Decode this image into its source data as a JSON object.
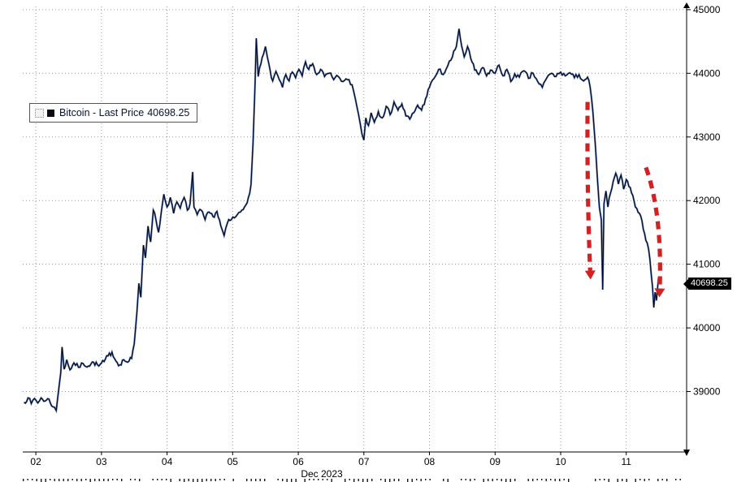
{
  "chart_data": {
    "type": "line",
    "title": "Bitcoin - Last Price",
    "legend": {
      "label": "Bitcoin - Last Price",
      "value": "40698.25"
    },
    "last_price": 40698.25,
    "x_axis": {
      "caption": "Dec 2023",
      "tick_days": [
        2,
        3,
        4,
        5,
        6,
        7,
        8,
        9,
        10,
        11
      ],
      "tick_labels": [
        "02",
        "03",
        "04",
        "05",
        "06",
        "07",
        "08",
        "09",
        "10",
        "11"
      ]
    },
    "y_axis": {
      "ticks": [
        39000,
        40000,
        41000,
        42000,
        43000,
        44000,
        45000
      ],
      "tick_labels": [
        "39000",
        "40000",
        "41000",
        "42000",
        "43000",
        "44000",
        "45000"
      ],
      "side": "right"
    },
    "xlim": [
      1.8,
      11.92
    ],
    "ylim": [
      38050,
      45050
    ],
    "grid": "dotted",
    "jitter": 38,
    "colors": {
      "line": "#05060d",
      "line_glow": "#1d4db0",
      "grid": "#9a9a9a",
      "axis": "#000000",
      "arrow": "#d42020",
      "label_bg": "#000000",
      "label_fg": "#ffffff"
    },
    "series": [
      {
        "name": "Bitcoin",
        "points": [
          [
            1.82,
            38830
          ],
          [
            1.88,
            38900
          ],
          [
            1.93,
            38810
          ],
          [
            1.98,
            38890
          ],
          [
            2.03,
            38820
          ],
          [
            2.08,
            38900
          ],
          [
            2.14,
            38850
          ],
          [
            2.2,
            38880
          ],
          [
            2.26,
            38760
          ],
          [
            2.31,
            38700
          ],
          [
            2.35,
            39050
          ],
          [
            2.38,
            39300
          ],
          [
            2.4,
            39700
          ],
          [
            2.43,
            39350
          ],
          [
            2.47,
            39500
          ],
          [
            2.52,
            39340
          ],
          [
            2.58,
            39450
          ],
          [
            2.65,
            39380
          ],
          [
            2.72,
            39440
          ],
          [
            2.8,
            39400
          ],
          [
            2.88,
            39460
          ],
          [
            2.96,
            39400
          ],
          [
            3.04,
            39470
          ],
          [
            3.1,
            39560
          ],
          [
            3.16,
            39620
          ],
          [
            3.22,
            39480
          ],
          [
            3.28,
            39420
          ],
          [
            3.34,
            39500
          ],
          [
            3.4,
            39460
          ],
          [
            3.46,
            39520
          ],
          [
            3.5,
            39750
          ],
          [
            3.54,
            40250
          ],
          [
            3.57,
            40700
          ],
          [
            3.6,
            40480
          ],
          [
            3.64,
            41300
          ],
          [
            3.67,
            41100
          ],
          [
            3.71,
            41600
          ],
          [
            3.75,
            41350
          ],
          [
            3.79,
            41850
          ],
          [
            3.83,
            41700
          ],
          [
            3.87,
            41500
          ],
          [
            3.91,
            41800
          ],
          [
            3.95,
            42100
          ],
          [
            4.0,
            41900
          ],
          [
            4.05,
            42050
          ],
          [
            4.1,
            41800
          ],
          [
            4.15,
            41980
          ],
          [
            4.2,
            41880
          ],
          [
            4.26,
            42050
          ],
          [
            4.31,
            41850
          ],
          [
            4.35,
            41950
          ],
          [
            4.39,
            42450
          ],
          [
            4.41,
            41900
          ],
          [
            4.46,
            41780
          ],
          [
            4.52,
            41850
          ],
          [
            4.58,
            41700
          ],
          [
            4.64,
            41820
          ],
          [
            4.7,
            41750
          ],
          [
            4.76,
            41830
          ],
          [
            4.82,
            41600
          ],
          [
            4.87,
            41450
          ],
          [
            4.92,
            41650
          ],
          [
            4.98,
            41700
          ],
          [
            5.05,
            41750
          ],
          [
            5.12,
            41820
          ],
          [
            5.18,
            41900
          ],
          [
            5.24,
            42050
          ],
          [
            5.28,
            42250
          ],
          [
            5.31,
            42900
          ],
          [
            5.34,
            43800
          ],
          [
            5.36,
            44550
          ],
          [
            5.39,
            43950
          ],
          [
            5.43,
            44150
          ],
          [
            5.47,
            44300
          ],
          [
            5.5,
            44420
          ],
          [
            5.53,
            44250
          ],
          [
            5.57,
            44050
          ],
          [
            5.61,
            43880
          ],
          [
            5.66,
            44030
          ],
          [
            5.71,
            43900
          ],
          [
            5.76,
            43780
          ],
          [
            5.81,
            43980
          ],
          [
            5.86,
            43880
          ],
          [
            5.91,
            44020
          ],
          [
            5.96,
            43930
          ],
          [
            6.01,
            44060
          ],
          [
            6.06,
            43960
          ],
          [
            6.11,
            44180
          ],
          [
            6.16,
            44060
          ],
          [
            6.22,
            44150
          ],
          [
            6.28,
            43980
          ],
          [
            6.34,
            44060
          ],
          [
            6.4,
            43950
          ],
          [
            6.47,
            44000
          ],
          [
            6.54,
            43900
          ],
          [
            6.61,
            43950
          ],
          [
            6.68,
            43870
          ],
          [
            6.75,
            43900
          ],
          [
            6.82,
            43820
          ],
          [
            6.87,
            43600
          ],
          [
            6.92,
            43350
          ],
          [
            6.97,
            43050
          ],
          [
            7.0,
            42950
          ],
          [
            7.03,
            43300
          ],
          [
            7.07,
            43180
          ],
          [
            7.11,
            43380
          ],
          [
            7.16,
            43230
          ],
          [
            7.22,
            43400
          ],
          [
            7.28,
            43300
          ],
          [
            7.34,
            43480
          ],
          [
            7.4,
            43350
          ],
          [
            7.46,
            43550
          ],
          [
            7.52,
            43420
          ],
          [
            7.58,
            43520
          ],
          [
            7.64,
            43330
          ],
          [
            7.7,
            43280
          ],
          [
            7.76,
            43380
          ],
          [
            7.82,
            43500
          ],
          [
            7.88,
            43420
          ],
          [
            7.94,
            43600
          ],
          [
            8.0,
            43780
          ],
          [
            8.07,
            43920
          ],
          [
            8.14,
            44060
          ],
          [
            8.21,
            43980
          ],
          [
            8.28,
            44120
          ],
          [
            8.35,
            44260
          ],
          [
            8.41,
            44420
          ],
          [
            8.45,
            44700
          ],
          [
            8.49,
            44430
          ],
          [
            8.53,
            44260
          ],
          [
            8.58,
            44420
          ],
          [
            8.63,
            44230
          ],
          [
            8.69,
            44050
          ],
          [
            8.75,
            43980
          ],
          [
            8.81,
            44090
          ],
          [
            8.87,
            43960
          ],
          [
            8.93,
            44050
          ],
          [
            9.0,
            44000
          ],
          [
            9.06,
            44130
          ],
          [
            9.12,
            43960
          ],
          [
            9.18,
            44060
          ],
          [
            9.24,
            43870
          ],
          [
            9.3,
            43990
          ],
          [
            9.37,
            43940
          ],
          [
            9.44,
            44040
          ],
          [
            9.51,
            43920
          ],
          [
            9.58,
            44000
          ],
          [
            9.65,
            43870
          ],
          [
            9.72,
            43780
          ],
          [
            9.79,
            43930
          ],
          [
            9.86,
            44000
          ],
          [
            9.93,
            43950
          ],
          [
            10.0,
            44020
          ],
          [
            10.07,
            43960
          ],
          [
            10.14,
            44010
          ],
          [
            10.21,
            43930
          ],
          [
            10.28,
            43980
          ],
          [
            10.35,
            43880
          ],
          [
            10.41,
            43940
          ],
          [
            10.45,
            43780
          ],
          [
            10.49,
            43400
          ],
          [
            10.53,
            42850
          ],
          [
            10.56,
            42350
          ],
          [
            10.59,
            41900
          ],
          [
            10.62,
            41700
          ],
          [
            10.64,
            40600
          ],
          [
            10.66,
            41950
          ],
          [
            10.69,
            42150
          ],
          [
            10.72,
            41900
          ],
          [
            10.76,
            42120
          ],
          [
            10.8,
            42300
          ],
          [
            10.84,
            42430
          ],
          [
            10.88,
            42260
          ],
          [
            10.92,
            42400
          ],
          [
            10.96,
            42180
          ],
          [
            11.0,
            42330
          ],
          [
            11.04,
            42220
          ],
          [
            11.08,
            42120
          ],
          [
            11.12,
            41990
          ],
          [
            11.16,
            41880
          ],
          [
            11.2,
            41800
          ],
          [
            11.24,
            41680
          ],
          [
            11.28,
            41480
          ],
          [
            11.32,
            41330
          ],
          [
            11.36,
            41080
          ],
          [
            11.4,
            40650
          ],
          [
            11.42,
            40320
          ],
          [
            11.44,
            40560
          ],
          [
            11.46,
            40430
          ],
          [
            11.49,
            40780
          ],
          [
            11.52,
            40698.25
          ]
        ]
      }
    ],
    "annotations": [
      {
        "type": "arrow",
        "from": [
          10.41,
          43550
        ],
        "curve": [
          10.4,
          42100
        ],
        "to": [
          10.45,
          40900
        ]
      },
      {
        "type": "arrow",
        "from": [
          11.3,
          42520
        ],
        "curve": [
          11.55,
          41800
        ],
        "to": [
          11.51,
          40620
        ]
      }
    ]
  }
}
